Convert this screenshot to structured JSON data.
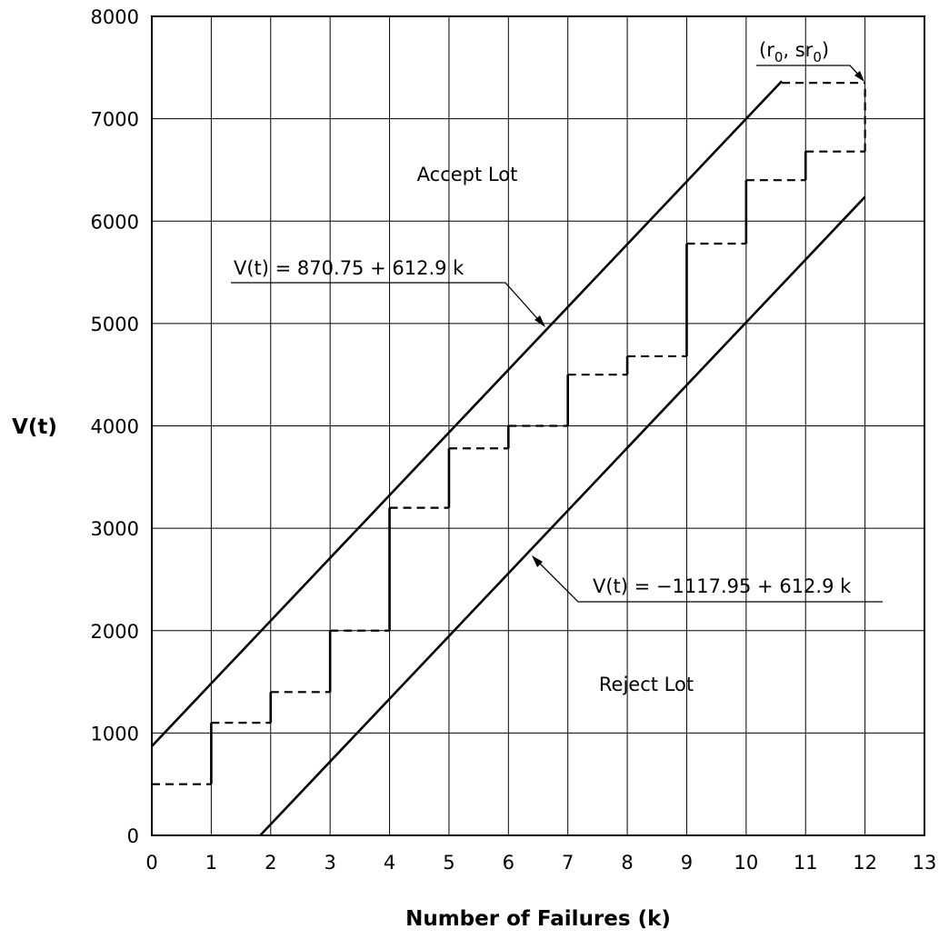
{
  "chart_data": {
    "type": "line",
    "xlabel": "Number of Failures (k)",
    "ylabel": "V(t)",
    "xlim": [
      0,
      13
    ],
    "ylim": [
      0,
      8000
    ],
    "x_ticks": [
      "0",
      "1",
      "2",
      "3",
      "4",
      "5",
      "6",
      "7",
      "8",
      "9",
      "10",
      "11",
      "12",
      "13"
    ],
    "y_ticks": [
      "0",
      "1000",
      "2000",
      "3000",
      "4000",
      "5000",
      "6000",
      "7000",
      "8000"
    ],
    "grid": true,
    "series": [
      {
        "name": "V(t) = 870.75 + 612.9 k",
        "kind": "accept-boundary",
        "intercept": 870.75,
        "slope": 612.9,
        "x_range": [
          0,
          10.6
        ]
      },
      {
        "name": "V(t) = −1117.95 + 612.9 k",
        "kind": "reject-boundary",
        "intercept": -1117.95,
        "slope": 612.9,
        "x_range": [
          1.82,
          12
        ]
      },
      {
        "kind": "step-path",
        "steps": [
          {
            "k": 0,
            "from": 500,
            "to": 500
          },
          {
            "k": 1,
            "from": 500,
            "to": 1100
          },
          {
            "k": 2,
            "from": 1100,
            "to": 1400
          },
          {
            "k": 3,
            "from": 1400,
            "to": 2000
          },
          {
            "k": 4,
            "from": 2000,
            "to": 3200
          },
          {
            "k": 5,
            "from": 3200,
            "to": 3780
          },
          {
            "k": 6,
            "from": 3780,
            "to": 4000
          },
          {
            "k": 7,
            "from": 4000,
            "to": 4500
          },
          {
            "k": 8,
            "from": 4500,
            "to": 4680
          },
          {
            "k": 9,
            "from": 4680,
            "to": 5780
          },
          {
            "k": 10,
            "from": 5780,
            "to": 6400
          },
          {
            "k": 11,
            "from": 6400,
            "to": 6680
          },
          {
            "k": 12,
            "from": 6680,
            "to": 7350
          }
        ],
        "end_x": 12
      }
    ],
    "truncation_point": {
      "k": 12,
      "v": 7350
    },
    "annotations": {
      "accept": "Accept Lot",
      "reject": "Reject Lot",
      "upper_eq": "V(t) = 870.75 + 612.9 k",
      "lower_eq": "V(t) = −1117.95 + 612.9 k",
      "trunc_r": "(r",
      "trunc_sub1": "0",
      "trunc_mid": ", sr",
      "trunc_sub2": "0",
      "trunc_close": ")"
    }
  }
}
